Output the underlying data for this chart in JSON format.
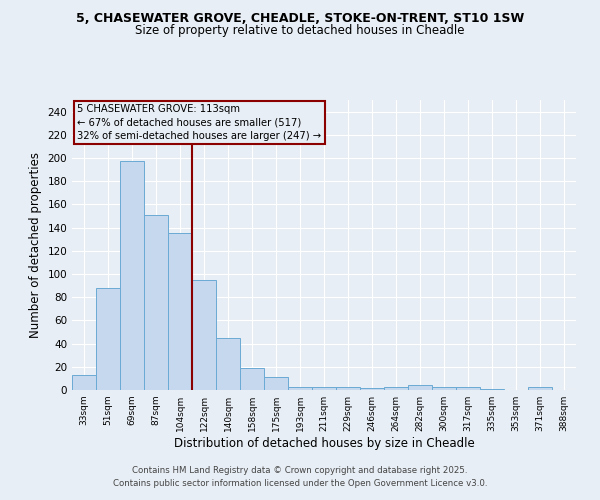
{
  "title1": "5, CHASEWATER GROVE, CHEADLE, STOKE-ON-TRENT, ST10 1SW",
  "title2": "Size of property relative to detached houses in Cheadle",
  "xlabel": "Distribution of detached houses by size in Cheadle",
  "ylabel": "Number of detached properties",
  "categories": [
    "33sqm",
    "51sqm",
    "69sqm",
    "87sqm",
    "104sqm",
    "122sqm",
    "140sqm",
    "158sqm",
    "175sqm",
    "193sqm",
    "211sqm",
    "229sqm",
    "246sqm",
    "264sqm",
    "282sqm",
    "300sqm",
    "317sqm",
    "335sqm",
    "353sqm",
    "371sqm",
    "388sqm"
  ],
  "values": [
    13,
    88,
    197,
    151,
    135,
    95,
    45,
    19,
    11,
    3,
    3,
    3,
    2,
    3,
    4,
    3,
    3,
    1,
    0,
    3,
    0
  ],
  "bar_color": "#c5d8ee",
  "bar_edge_color": "#6aaad4",
  "vline_pos": 4.5,
  "annotation_text_line1": "5 CHASEWATER GROVE: 113sqm",
  "annotation_text_line2": "← 67% of detached houses are smaller (517)",
  "annotation_text_line3": "32% of semi-detached houses are larger (247) →",
  "vline_color": "#8b0000",
  "ylim": [
    0,
    250
  ],
  "yticks": [
    0,
    20,
    40,
    60,
    80,
    100,
    120,
    140,
    160,
    180,
    200,
    220,
    240
  ],
  "footer1": "Contains HM Land Registry data © Crown copyright and database right 2025.",
  "footer2": "Contains public sector information licensed under the Open Government Licence v3.0.",
  "background_color": "#e8eef5",
  "grid_color": "#ffffff"
}
